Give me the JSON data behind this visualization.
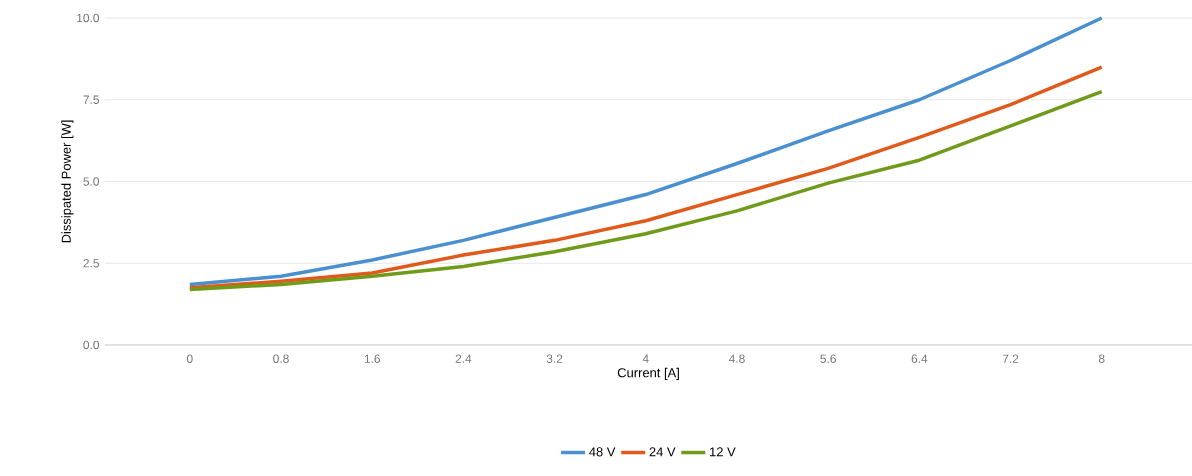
{
  "chart_data": {
    "type": "line",
    "xlabel": "Current [A]",
    "ylabel": "Dissipated Power [W]",
    "categories": [
      "0",
      "0.8",
      "1.6",
      "2.4",
      "3.2",
      "4",
      "4.8",
      "5.6",
      "6.4",
      "7.2",
      "8"
    ],
    "series": [
      {
        "name": "48 V",
        "color": "#4a8fcf",
        "values": [
          1.85,
          2.1,
          2.6,
          3.2,
          3.9,
          4.6,
          5.55,
          6.55,
          7.5,
          8.7,
          10.0
        ]
      },
      {
        "name": "24 V",
        "color": "#e05a1c",
        "values": [
          1.75,
          1.95,
          2.2,
          2.75,
          3.2,
          3.8,
          4.6,
          5.4,
          6.35,
          7.35,
          8.5
        ]
      },
      {
        "name": "12 V",
        "color": "#6f9a1a",
        "values": [
          1.7,
          1.85,
          2.1,
          2.4,
          2.85,
          3.4,
          4.1,
          4.95,
          5.65,
          6.7,
          7.75
        ]
      }
    ],
    "ylim": [
      0,
      10
    ],
    "yticks": [
      {
        "value": 0,
        "label": "0.0"
      },
      {
        "value": 2.5,
        "label": "2.5"
      },
      {
        "value": 5,
        "label": "5.0"
      },
      {
        "value": 7.5,
        "label": "7.5"
      },
      {
        "value": 10,
        "label": "10.0"
      }
    ],
    "grid": "y",
    "legend": "bottom",
    "line_style": "solid",
    "marker": "none"
  }
}
